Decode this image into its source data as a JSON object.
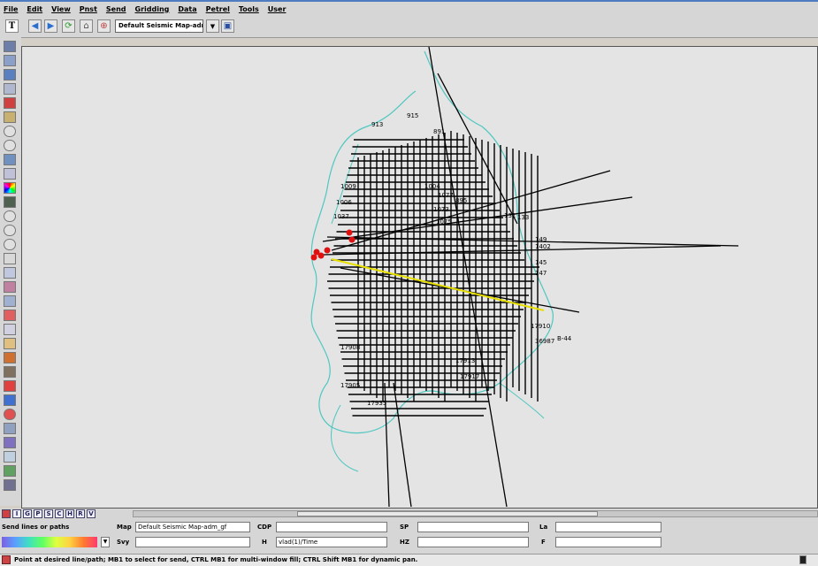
{
  "menu": [
    "File",
    "Edit",
    "View",
    "Pnst",
    "Send",
    "Gridding",
    "Data",
    "Petrel",
    "Tools",
    "User"
  ],
  "toolbar": {
    "map_template": "Default Seismic Map-adm",
    "icons": [
      "back-icon",
      "forward-icon",
      "refresh-icon",
      "home-icon",
      "zoom-icon",
      "dropdown-icon",
      "save-icon"
    ]
  },
  "map": {
    "line_labels": [
      "913",
      "915",
      "891",
      "1077",
      "1073",
      "1075",
      "895",
      "133",
      "131",
      "1004",
      "149",
      "1402",
      "145",
      "147",
      "17910",
      "17913",
      "17917",
      "17905",
      "17908",
      "17935",
      "36987",
      "B-44",
      "1009",
      "1006",
      "1037"
    ],
    "colors": {
      "background": "#e4e4e4",
      "seismic_lines": "#000000",
      "coastline": "#4fc7c0",
      "selected_line": "#e8e000",
      "wells": "#e01010"
    }
  },
  "bottom_tabs": [
    "I",
    "G",
    "P",
    "S",
    "C",
    "H",
    "R",
    "V"
  ],
  "status": {
    "send_label": "Send lines or paths",
    "map_label": "Map",
    "map_value": "Default Seismic Map-adm_gf",
    "cdp_label": "CDP",
    "cdp_value": "",
    "sp_label": "SP",
    "sp_value": "",
    "la_label": "La",
    "la_value": "",
    "svy_label": "Svy",
    "svy_value": "",
    "h_label": "H",
    "h_value": "vlad(1)/Time",
    "hz_label": "HZ",
    "hz_value": "",
    "f_label": "F",
    "f_value": "",
    "message": "Point at desired line/path; MB1 to select for send, CTRL MB1 for multi-window fill; CTRL Shift MB1 for dynamic pan."
  }
}
